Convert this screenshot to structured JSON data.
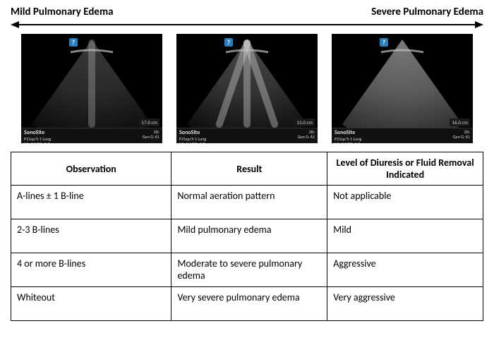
{
  "header": {
    "left_label": "Mild Pulmonary Edema",
    "right_label": "Severe Pulmonary Edema"
  },
  "arrow": {
    "stroke": "#000000",
    "stroke_width": 2
  },
  "ultrasound_images": [
    {
      "marker": "?",
      "depth_label": "17.0 cm",
      "footer_brand": "SonoSite",
      "footer_preset": "P21xp/5-1  Lung",
      "footer_mi": "MI: 0.5  TIS: 0.7",
      "footer_right1": "2D:",
      "footer_right2": "Gen   G: 61",
      "fan_gradient_stops": [
        "#3a3a3a",
        "#2a2a2a",
        "#0a0a0a"
      ],
      "b_line_count": 1,
      "b_line_opacity": 0.25
    },
    {
      "marker": "?",
      "depth_label": "13.0 cm",
      "footer_brand": "SonoSite",
      "footer_preset": "P21xp/5-1  Lung",
      "footer_mi": "MI: 1.1  TIS: 0.7",
      "footer_right1": "2D:",
      "footer_right2": "Gen   G: 61",
      "fan_gradient_stops": [
        "#4a4a4a",
        "#333333",
        "#0a0a0a"
      ],
      "b_line_count": 3,
      "b_line_opacity": 0.35
    },
    {
      "marker": "?",
      "depth_label": "16.0 cm",
      "footer_brand": "SonoSite",
      "footer_preset": "P21xp/5-1  Lung",
      "footer_mi": "MI: 0.5  TIS: 0.7",
      "footer_right1": "2D:",
      "footer_right2": "Gen   G: 61",
      "fan_gradient_stops": [
        "#7a7a7a",
        "#5c5c5c",
        "#2a2a2a"
      ],
      "b_line_count": 0,
      "b_line_opacity": 0
    }
  ],
  "table": {
    "headers": [
      "Observation",
      "Result",
      "Level of Diuresis or Fluid Removal Indicated"
    ],
    "rows": [
      [
        "A-lines ± 1 B-line",
        "Normal aeration pattern",
        "Not applicable"
      ],
      [
        "2-3 B-lines",
        "Mild pulmonary edema",
        "Mild"
      ],
      [
        "4 or more B-lines",
        "Moderate to severe pulmonary edema",
        "Aggressive"
      ],
      [
        "Whiteout",
        "Very severe pulmonary edema",
        "Very aggressive"
      ]
    ]
  }
}
